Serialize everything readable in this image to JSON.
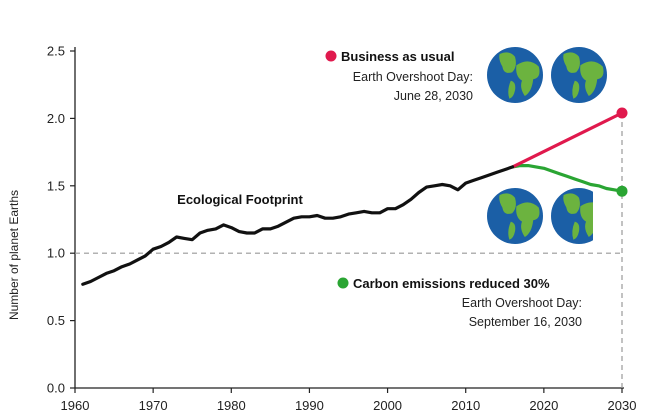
{
  "chart_data": {
    "type": "line",
    "ylabel": "Number of planet Earths",
    "xlim": [
      1960,
      2030
    ],
    "ylim": [
      0,
      2.5
    ],
    "x_ticks": [
      "1960",
      "1970",
      "1980",
      "1990",
      "2000",
      "2010",
      "2020",
      "2030"
    ],
    "y_ticks": [
      "0.0",
      "0.5",
      "1.0",
      "1.5",
      "2.0",
      "2.5"
    ],
    "reference_line": 1.0,
    "grid": false,
    "series": [
      {
        "name": "Ecological Footprint",
        "color": "#111111",
        "x": [
          1961,
          1962,
          1963,
          1964,
          1965,
          1966,
          1967,
          1968,
          1969,
          1970,
          1971,
          1972,
          1973,
          1974,
          1975,
          1976,
          1977,
          1978,
          1979,
          1980,
          1981,
          1982,
          1983,
          1984,
          1985,
          1986,
          1987,
          1988,
          1989,
          1990,
          1991,
          1992,
          1993,
          1994,
          1995,
          1996,
          1997,
          1998,
          1999,
          2000,
          2001,
          2002,
          2003,
          2004,
          2005,
          2006,
          2007,
          2008,
          2009,
          2010,
          2011,
          2012,
          2013,
          2014,
          2015,
          2016
        ],
        "values": [
          0.77,
          0.79,
          0.82,
          0.85,
          0.87,
          0.9,
          0.92,
          0.95,
          0.98,
          1.03,
          1.05,
          1.08,
          1.12,
          1.11,
          1.1,
          1.15,
          1.17,
          1.18,
          1.21,
          1.19,
          1.16,
          1.15,
          1.15,
          1.18,
          1.18,
          1.2,
          1.23,
          1.26,
          1.27,
          1.27,
          1.28,
          1.26,
          1.26,
          1.27,
          1.29,
          1.3,
          1.31,
          1.3,
          1.3,
          1.33,
          1.33,
          1.36,
          1.4,
          1.45,
          1.49,
          1.5,
          1.51,
          1.5,
          1.47,
          1.52,
          1.54,
          1.56,
          1.58,
          1.6,
          1.62,
          1.64
        ]
      },
      {
        "name": "Business as usual",
        "color": "#e0194d",
        "x": [
          2016,
          2030
        ],
        "values": [
          1.64,
          2.04
        ]
      },
      {
        "name": "Carbon emissions reduced 30%",
        "color": "#2aa533",
        "x": [
          2016,
          2017,
          2018,
          2019,
          2020,
          2021,
          2022,
          2023,
          2024,
          2025,
          2026,
          2027,
          2028,
          2029,
          2030
        ],
        "values": [
          1.64,
          1.65,
          1.65,
          1.64,
          1.63,
          1.61,
          1.59,
          1.57,
          1.55,
          1.53,
          1.51,
          1.5,
          1.48,
          1.47,
          1.46
        ]
      }
    ],
    "annotations": {
      "footprint_label": "Ecological Footprint",
      "business": {
        "title": "Business as usual",
        "line1": "Earth Overshoot Day:",
        "line2": "June 28, 2030",
        "earths": 2
      },
      "reduced": {
        "title": "Carbon emissions reduced 30%",
        "line1": "Earth Overshoot Day:",
        "line2": "September 16, 2030",
        "earths": 1.75
      }
    }
  }
}
